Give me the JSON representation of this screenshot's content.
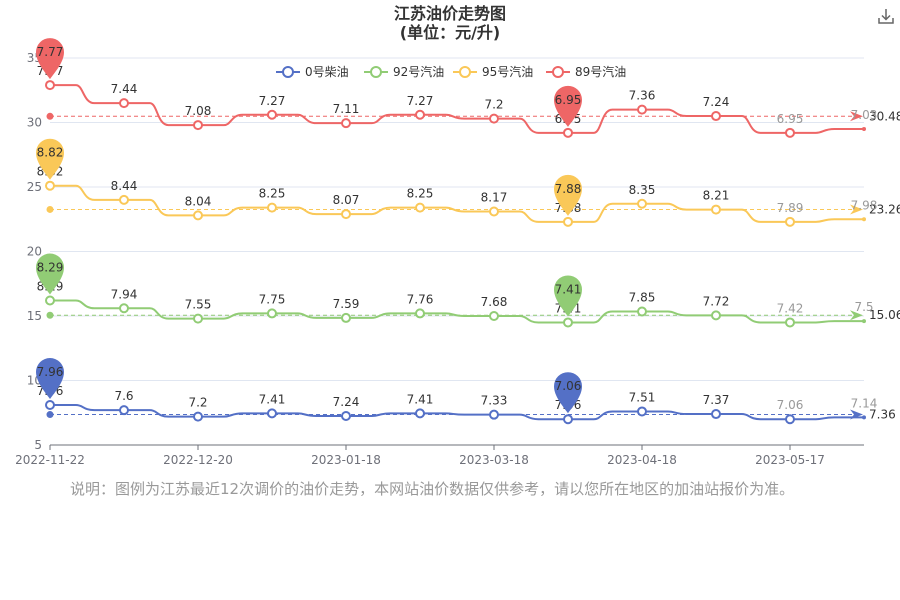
{
  "header": {
    "title_line1": "江苏油价走势图",
    "title_line2": "(单位：元/升)"
  },
  "toolbar": {
    "download_icon": "download-icon"
  },
  "note": "说明：图例为江苏最近12次调价的油价走势，本网站油价数据仅供参考，请以您所在地区的加油站报价为准。",
  "chart_data": {
    "type": "line",
    "title": "江苏油价走势图",
    "subtitle": "(单位：元/升)",
    "legend_position": "top-center",
    "grid": true,
    "ylim": [
      5,
      35
    ],
    "y_ticks": [
      "5",
      "10",
      "15",
      "20",
      "25",
      "30",
      "35"
    ],
    "x_ticks": [
      "2022-11-22",
      "2022-12-20",
      "2023-01-18",
      "2023-03-18",
      "2023-04-18",
      "2023-05-17"
    ],
    "x_tick_index": [
      0,
      2,
      4,
      6,
      8,
      10
    ],
    "categories": [
      "2022-11-22",
      "",
      "2022-12-20",
      "",
      "2023-01-18",
      "",
      "2023-03-18",
      "",
      "2023-04-18",
      "",
      "2023-05-17",
      ""
    ],
    "series": [
      {
        "name": "0号柴油",
        "color": "#5470c6",
        "values": [
          7.96,
          7.6,
          7.2,
          7.41,
          7.24,
          7.41,
          7.33,
          7.06,
          7.51,
          7.37,
          7.06,
          7.14
        ],
        "plot_values": [
          8.1,
          7.7,
          7.2,
          7.45,
          7.25,
          7.45,
          7.35,
          7.0,
          7.6,
          7.4,
          7.0,
          7.14
        ],
        "labels": [
          "7.96",
          "7.6",
          "7.2",
          "7.41",
          "7.24",
          "7.41",
          "7.33",
          "7.06",
          "7.51",
          "7.37",
          "7.06",
          "7.14"
        ],
        "max_label": "7.96",
        "min_label": "7.06",
        "average_label": "7.36",
        "average_value": 7.36,
        "max_index": 0,
        "min_index": 7
      },
      {
        "name": "92号汽油",
        "color": "#91cc75",
        "values": [
          8.29,
          7.94,
          7.55,
          7.75,
          7.59,
          7.76,
          7.68,
          7.41,
          7.85,
          7.72,
          7.42,
          7.5
        ],
        "plot_values": [
          16.2,
          15.6,
          14.8,
          15.2,
          14.85,
          15.2,
          15.0,
          14.5,
          15.35,
          15.05,
          14.5,
          14.6
        ],
        "labels": [
          "8.29",
          "7.94",
          "7.55",
          "7.75",
          "7.59",
          "7.76",
          "7.68",
          "7.41",
          "7.85",
          "7.72",
          "7.42",
          "7.5"
        ],
        "max_label": "8.29",
        "min_label": "7.41",
        "average_label": "15.06",
        "average_value": 15.06,
        "max_index": 0,
        "min_index": 7
      },
      {
        "name": "95号汽油",
        "color": "#fac858",
        "values": [
          8.82,
          8.44,
          8.04,
          8.25,
          8.07,
          8.25,
          8.17,
          7.88,
          8.35,
          8.21,
          7.89,
          7.98
        ],
        "plot_values": [
          25.1,
          24.0,
          22.8,
          23.4,
          22.9,
          23.4,
          23.1,
          22.3,
          23.7,
          23.25,
          22.3,
          22.5
        ],
        "labels": [
          "8.82",
          "8.44",
          "8.04",
          "8.25",
          "8.07",
          "8.25",
          "8.17",
          "7.88",
          "8.35",
          "8.21",
          "7.89",
          "7.98"
        ],
        "max_label": "8.82",
        "min_label": "7.88",
        "average_label": "23.26",
        "average_value": 23.26,
        "max_index": 0,
        "min_index": 7
      },
      {
        "name": "89号汽油",
        "color": "#ee6666",
        "values": [
          7.77,
          7.44,
          7.08,
          7.27,
          7.11,
          7.27,
          7.2,
          6.95,
          7.36,
          7.24,
          6.95,
          7.03
        ],
        "plot_values": [
          32.9,
          31.5,
          29.8,
          30.6,
          29.95,
          30.6,
          30.3,
          29.2,
          31.0,
          30.5,
          29.2,
          29.5
        ],
        "labels": [
          "7.77",
          "7.44",
          "7.08",
          "7.27",
          "7.11",
          "7.27",
          "7.2",
          "6.95",
          "7.36",
          "7.24",
          "6.95",
          "7.03"
        ],
        "max_label": "7.77",
        "min_label": "6.95",
        "average_label": "30.48",
        "average_value": 30.48,
        "max_index": 0,
        "min_index": 7
      }
    ]
  }
}
